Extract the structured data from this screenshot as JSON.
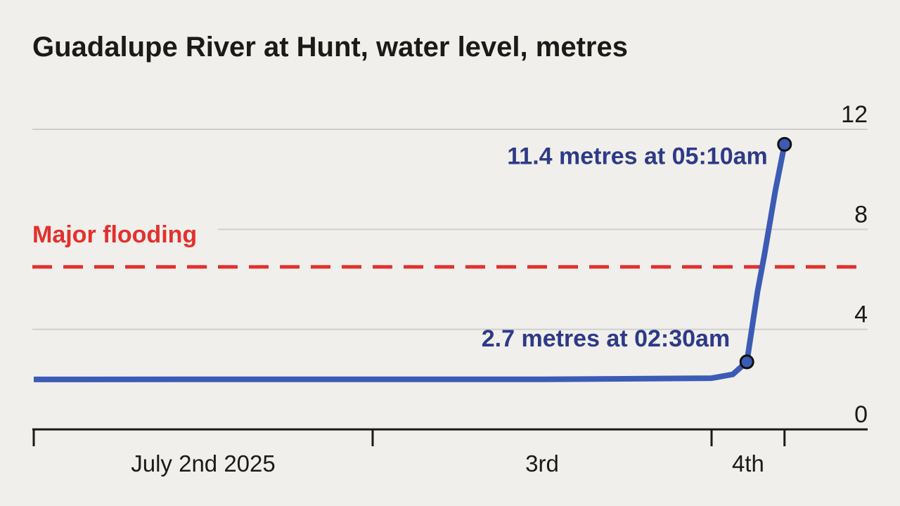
{
  "chart_data": {
    "type": "line",
    "title": "Guadalupe River at Hunt, water level, metres",
    "ylim": [
      0,
      12
    ],
    "y_ticks": [
      "0",
      "4",
      "8",
      "12"
    ],
    "y_tick_values": [
      0,
      4,
      8,
      12
    ],
    "grid": true,
    "y_axis_side": "right",
    "x_ticks": [
      {
        "label": "July 2nd 2025",
        "day_start": "2025-07-02T00:00",
        "day_end": "2025-07-03T00:00"
      },
      {
        "label": "3rd",
        "day_start": "2025-07-03T00:00",
        "day_end": "2025-07-04T00:00"
      },
      {
        "label": "4th",
        "day_start": "2025-07-04T00:00",
        "day_end": "2025-07-04T05:10"
      }
    ],
    "xlim": [
      "2025-07-02T00:00",
      "2025-07-04T11:00"
    ],
    "series": [
      {
        "color": "#3b5bb5",
        "points": [
          {
            "x": "2025-07-02T00:00",
            "y": 2.0
          },
          {
            "x": "2025-07-02T12:00",
            "y": 2.0
          },
          {
            "x": "2025-07-03T00:00",
            "y": 2.0
          },
          {
            "x": "2025-07-03T12:00",
            "y": 2.0
          },
          {
            "x": "2025-07-04T00:00",
            "y": 2.05
          },
          {
            "x": "2025-07-04T01:30",
            "y": 2.2
          },
          {
            "x": "2025-07-04T02:30",
            "y": 2.7
          },
          {
            "x": "2025-07-04T03:15",
            "y": 5.5
          },
          {
            "x": "2025-07-04T03:45",
            "y": 7.0
          },
          {
            "x": "2025-07-04T04:30",
            "y": 9.5
          },
          {
            "x": "2025-07-04T05:10",
            "y": 11.4
          }
        ]
      }
    ],
    "threshold": {
      "label": "Major flooding",
      "y": 6.5,
      "color": "#e3302f"
    },
    "annotations": [
      {
        "text": "11.4 metres at 05:10am",
        "x": "2025-07-04T05:10",
        "y": 11.4,
        "color": "#2e3a87"
      },
      {
        "text": "2.7 metres at 02:30am",
        "x": "2025-07-04T02:30",
        "y": 2.7,
        "color": "#2e3a87"
      }
    ],
    "colors": {
      "background": "#f0efeb",
      "grid": "#cfcfcf",
      "axis": "#1a1a1a",
      "text": "#1a1a1a"
    }
  }
}
